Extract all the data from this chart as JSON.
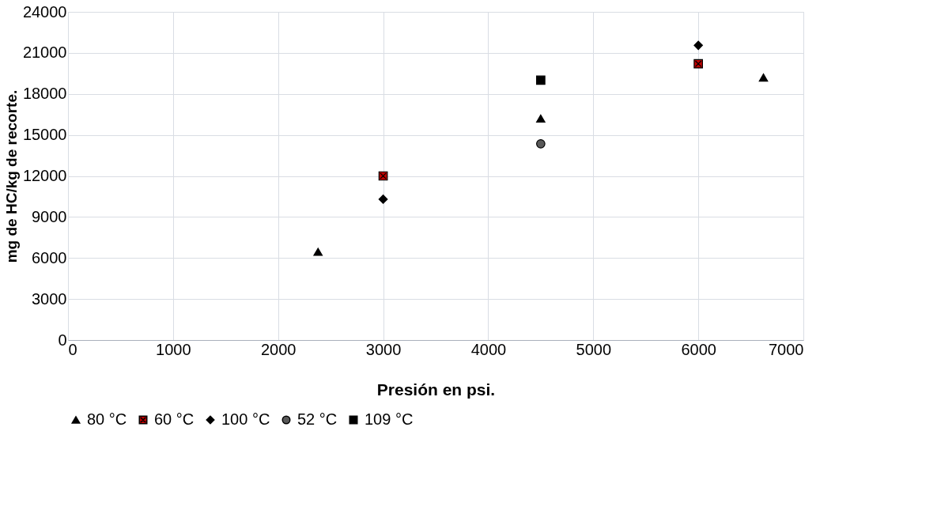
{
  "chart_data": {
    "type": "scatter",
    "xlabel": "Presión en psi.",
    "ylabel": "mg de HC/kg de recorte.",
    "xlim": [
      0,
      7000
    ],
    "xticks": [
      0,
      1000,
      2000,
      3000,
      4000,
      5000,
      6000,
      7000
    ],
    "ylim": [
      0,
      24000
    ],
    "yticks": [
      0,
      3000,
      6000,
      9000,
      12000,
      15000,
      18000,
      21000,
      24000
    ],
    "grid": true,
    "legend": "bottom",
    "series": [
      {
        "name": "80 °C",
        "color": "#000000",
        "marker": "triangle",
        "x": [
          2380,
          4500,
          6620
        ],
        "values": [
          6450,
          16200,
          19200
        ]
      },
      {
        "name": "60 °C",
        "color": "#c00000",
        "marker": "cross",
        "x": [
          3000,
          6000
        ],
        "values": [
          12000,
          20200
        ]
      },
      {
        "name": "100 °C",
        "color": "#000000",
        "marker": "diamond",
        "x": [
          3000,
          6000
        ],
        "values": [
          10300,
          21550
        ]
      },
      {
        "name": "52 °C",
        "color": "#595959",
        "marker": "circle",
        "x": [
          4500
        ],
        "values": [
          14350
        ]
      },
      {
        "name": "109 °C",
        "color": "#000000",
        "marker": "square",
        "x": [
          4500
        ],
        "values": [
          19000
        ]
      }
    ]
  }
}
